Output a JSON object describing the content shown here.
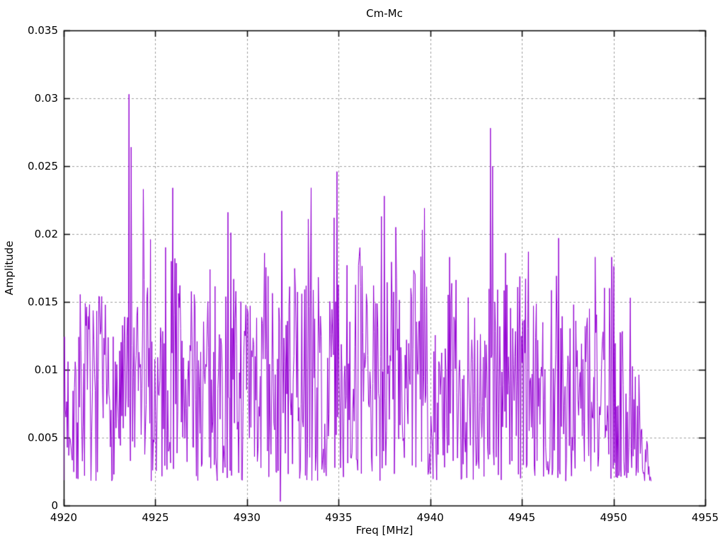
{
  "chart_data": {
    "type": "line",
    "title": "Cm-Mc",
    "xlabel": "Freq [MHz]",
    "ylabel": "Amplitude",
    "xlim": [
      4920,
      4955
    ],
    "ylim": [
      0,
      0.035
    ],
    "xticks": [
      4920,
      4925,
      4930,
      4935,
      4940,
      4945,
      4950,
      4955
    ],
    "xtick_labels": [
      "4920",
      "4925",
      "4930",
      "4935",
      "4940",
      "4945",
      "4950",
      "4955"
    ],
    "yticks": [
      0,
      0.005,
      0.01,
      0.015,
      0.02,
      0.025,
      0.03,
      0.035
    ],
    "ytick_labels": [
      "0",
      "0.005",
      "0.01",
      "0.015",
      "0.02",
      "0.025",
      "0.03",
      "0.035"
    ],
    "grid": true,
    "grid_style": "dashed",
    "legend": "none",
    "colors": {
      "line": "#9400d3",
      "grid": "#a0a0a0",
      "border": "#000000",
      "text": "#000000",
      "background": "#ffffff"
    },
    "series": {
      "name": "Cm-Mc",
      "x_start": 4920.0,
      "x_end": 4952.05,
      "num_points": 820,
      "seed": 7,
      "noise_floor": 0.0018,
      "envelope": [
        [
          4920.0,
          0.0125
        ],
        [
          4920.4,
          0.0147
        ],
        [
          4921.0,
          0.0168
        ],
        [
          4921.6,
          0.0147
        ],
        [
          4922.0,
          0.0157
        ],
        [
          4922.6,
          0.014
        ],
        [
          4923.0,
          0.0147
        ],
        [
          4923.9,
          0.0135
        ],
        [
          4924.4,
          0.019
        ],
        [
          4925.0,
          0.0147
        ],
        [
          4925.6,
          0.0196
        ],
        [
          4926.1,
          0.0196
        ],
        [
          4926.6,
          0.018
        ],
        [
          4927.1,
          0.0155
        ],
        [
          4927.6,
          0.0165
        ],
        [
          4928.1,
          0.0178
        ],
        [
          4928.6,
          0.016
        ],
        [
          4929.1,
          0.017
        ],
        [
          4929.6,
          0.0168
        ],
        [
          4930.1,
          0.0155
        ],
        [
          4930.6,
          0.0145
        ],
        [
          4931.1,
          0.0186
        ],
        [
          4931.6,
          0.015
        ],
        [
          4932.1,
          0.016
        ],
        [
          4932.6,
          0.0175
        ],
        [
          4933.1,
          0.0165
        ],
        [
          4933.6,
          0.0185
        ],
        [
          4934.1,
          0.016
        ],
        [
          4934.6,
          0.0165
        ],
        [
          4935.1,
          0.0175
        ],
        [
          4935.6,
          0.0176
        ],
        [
          4936.1,
          0.0188
        ],
        [
          4936.6,
          0.016
        ],
        [
          4937.1,
          0.017
        ],
        [
          4937.6,
          0.0185
        ],
        [
          4938.1,
          0.0203
        ],
        [
          4938.6,
          0.016
        ],
        [
          4939.1,
          0.0177
        ],
        [
          4939.6,
          0.019
        ],
        [
          4940.1,
          0.015
        ],
        [
          4940.6,
          0.013
        ],
        [
          4941.1,
          0.0183
        ],
        [
          4941.6,
          0.016
        ],
        [
          4942.1,
          0.0176
        ],
        [
          4942.6,
          0.0165
        ],
        [
          4943.1,
          0.017
        ],
        [
          4943.6,
          0.0175
        ],
        [
          4944.1,
          0.0186
        ],
        [
          4944.6,
          0.015
        ],
        [
          4945.1,
          0.0185
        ],
        [
          4945.6,
          0.0165
        ],
        [
          4946.1,
          0.0175
        ],
        [
          4946.6,
          0.016
        ],
        [
          4947.1,
          0.0185
        ],
        [
          4947.6,
          0.0145
        ],
        [
          4948.1,
          0.016
        ],
        [
          4948.6,
          0.0165
        ],
        [
          4949.1,
          0.018
        ],
        [
          4949.6,
          0.016
        ],
        [
          4950.1,
          0.018
        ],
        [
          4950.6,
          0.0115
        ],
        [
          4951.0,
          0.015
        ],
        [
          4951.3,
          0.0115
        ],
        [
          4951.6,
          0.008
        ],
        [
          4951.9,
          0.005
        ],
        [
          4952.05,
          0.0018
        ]
      ],
      "peaks": [
        [
          4923.55,
          0.0303
        ],
        [
          4923.67,
          0.0264
        ],
        [
          4924.35,
          0.0233
        ],
        [
          4924.75,
          0.0196
        ],
        [
          4925.95,
          0.0234
        ],
        [
          4926.05,
          0.0182
        ],
        [
          4928.95,
          0.0216
        ],
        [
          4929.12,
          0.0201
        ],
        [
          4930.95,
          0.0186
        ],
        [
          4931.9,
          0.0217
        ],
        [
          4933.35,
          0.0211
        ],
        [
          4933.52,
          0.0234
        ],
        [
          4934.75,
          0.0212
        ],
        [
          4934.92,
          0.0246
        ],
        [
          4935.45,
          0.0177
        ],
        [
          4936.15,
          0.019
        ],
        [
          4937.32,
          0.0213
        ],
        [
          4937.5,
          0.0228
        ],
        [
          4938.1,
          0.0205
        ],
        [
          4939.55,
          0.0203
        ],
        [
          4939.68,
          0.0219
        ],
        [
          4941.05,
          0.0183
        ],
        [
          4943.3,
          0.0278
        ],
        [
          4943.42,
          0.025
        ],
        [
          4944.1,
          0.0186
        ],
        [
          4945.35,
          0.0187
        ],
        [
          4947.0,
          0.0197
        ],
        [
          4949.0,
          0.0183
        ],
        [
          4949.9,
          0.0183
        ],
        [
          4950.9,
          0.0153
        ]
      ],
      "dips": [
        [
          4931.82,
          0.0003
        ]
      ]
    }
  }
}
